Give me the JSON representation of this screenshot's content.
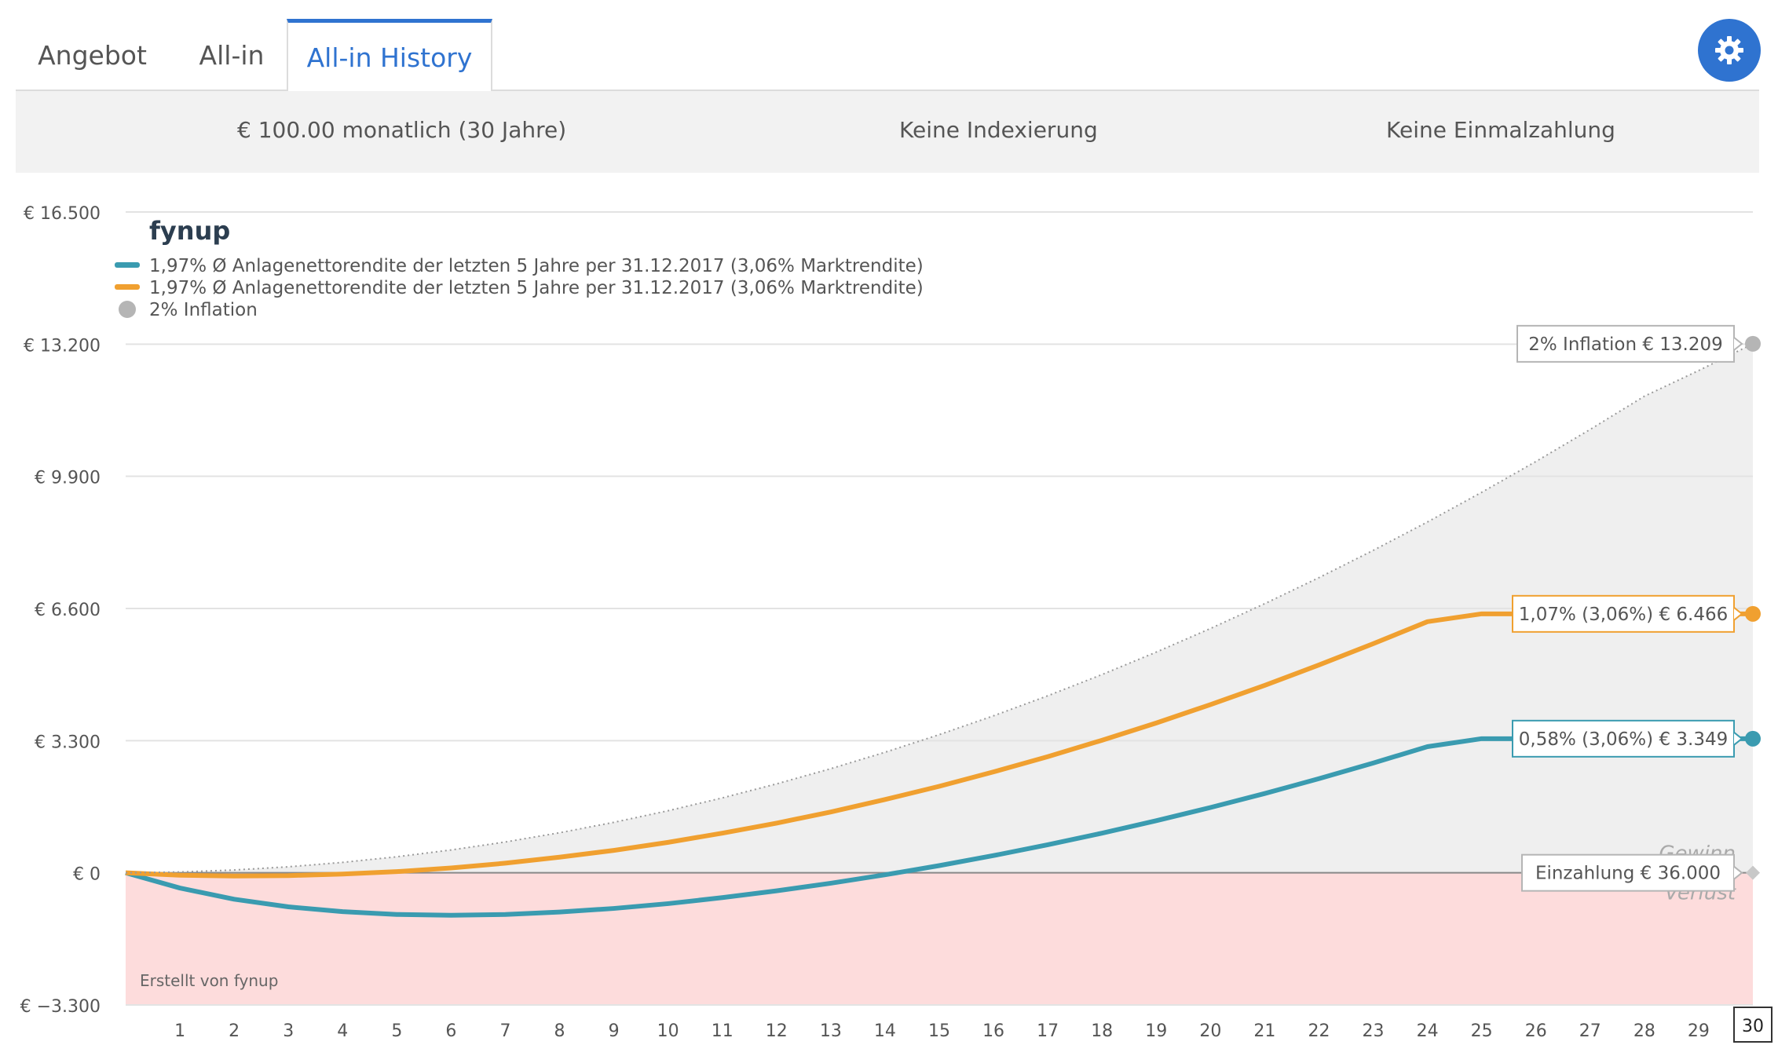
{
  "tabs": [
    {
      "label": "Angebot"
    },
    {
      "label": "All-in"
    },
    {
      "label": "All-in History"
    }
  ],
  "summary": {
    "monthly": "€ 100.00 monatlich (30 Jahre)",
    "indexing": "Keine Indexierung",
    "lump_sum": "Keine Einmalzahlung"
  },
  "colors": {
    "accent": "#2f73d0",
    "teal": "#3a9bb0",
    "orange": "#f0a030",
    "inflation": "#b5b5b5",
    "loss_area": "#fddcdc",
    "gain_area": "#efefef"
  },
  "chart_data": {
    "type": "line",
    "logo": "fynup",
    "credit": "Erstellt von fynup",
    "ylim": [
      -3300,
      16500
    ],
    "yticks": [
      16500,
      13200,
      9900,
      6600,
      3300,
      0,
      -3300
    ],
    "ytick_labels": [
      "€ 16.500",
      "€ 13.200",
      "€ 9.900",
      "€ 6.600",
      "€ 3.300",
      "€ 0",
      "€ −3.300"
    ],
    "x": [
      0,
      1,
      2,
      3,
      4,
      5,
      6,
      7,
      8,
      9,
      10,
      11,
      12,
      13,
      14,
      15,
      16,
      17,
      18,
      19,
      20,
      21,
      22,
      23,
      24,
      25,
      26,
      27,
      28,
      29,
      30
    ],
    "xtick_labels": [
      "1",
      "2",
      "3",
      "4",
      "5",
      "6",
      "7",
      "8",
      "9",
      "10",
      "11",
      "12",
      "13",
      "14",
      "15",
      "16",
      "17",
      "18",
      "19",
      "20",
      "21",
      "22",
      "23",
      "24",
      "25",
      "26",
      "27",
      "28",
      "29",
      "30"
    ],
    "legend": [
      {
        "label": "1,97% Ø Anlagenettorendite der letzten 5 Jahre per 31.12.2017 (3,06% Marktrendite)",
        "color": "#3a9bb0",
        "marker": "line"
      },
      {
        "label": "1,97% Ø Anlagenettorendite der letzten 5 Jahre per 31.12.2017 (3,06% Marktrendite)",
        "color": "#f0a030",
        "marker": "line"
      },
      {
        "label": "2% Inflation",
        "color": "#b5b5b5",
        "marker": "dot"
      }
    ],
    "series": [
      {
        "color": "#3a9bb0",
        "values": [
          0,
          -380,
          -660,
          -850,
          -970,
          -1040,
          -1060,
          -1040,
          -980,
          -890,
          -770,
          -620,
          -450,
          -260,
          -50,
          180,
          430,
          700,
          990,
          1300,
          1630,
          1980,
          2350,
          2740,
          3150,
          3349,
          3349,
          3349,
          3349,
          3349,
          3349
        ]
      },
      {
        "color": "#f0a030",
        "values": [
          0,
          -60,
          -80,
          -70,
          -30,
          30,
          120,
          240,
          390,
          560,
          760,
          990,
          1240,
          1520,
          1830,
          2160,
          2520,
          2900,
          3310,
          3740,
          4200,
          4680,
          5190,
          5720,
          6270,
          6466,
          6466,
          6466,
          6466,
          6466,
          6466
        ]
      },
      {
        "color": "#b5b5b5",
        "values": [
          0,
          20,
          70,
          150,
          260,
          400,
          570,
          770,
          1000,
          1260,
          1550,
          1870,
          2220,
          2600,
          3010,
          3450,
          3920,
          4420,
          4950,
          5510,
          6100,
          6720,
          7370,
          8050,
          8760,
          9500,
          10270,
          11070,
          11900,
          12540,
          13209
        ]
      }
    ],
    "end_labels": [
      {
        "text": "2% Inflation € 13.209",
        "color": "#b5b5b5",
        "value": 13209
      },
      {
        "text": "1,07% (3,06%) € 6.466",
        "color": "#f0a030",
        "value": 6466
      },
      {
        "text": "0,58% (3,06%) € 3.349",
        "color": "#3a9bb0",
        "value": 3349
      },
      {
        "text": "Einzahlung € 36.000",
        "color": "#b5b5b5",
        "value": 0
      }
    ],
    "zone_labels": {
      "gain": "Gewinn",
      "loss": "Verlust"
    },
    "highlight_x": "30"
  }
}
